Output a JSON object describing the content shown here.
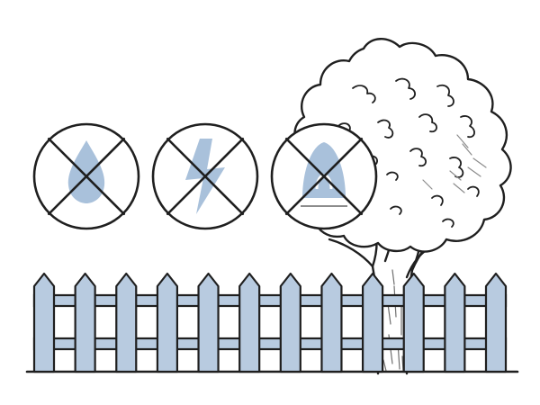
{
  "colors": {
    "background": "#ffffff",
    "ink": "#1f1f1f",
    "fence_fill": "#b8cbe0",
    "icon_fill": "#a9c1db",
    "tree_shadow": "#8c8c8c",
    "trunk_hatch": "#6f6f6f"
  },
  "prohibition_icons": [
    {
      "icon": "water-drop-icon",
      "crossed_out": true
    },
    {
      "icon": "lightning-bolt-icon",
      "crossed_out": true
    },
    {
      "icon": "iron-icon",
      "crossed_out": true
    }
  ],
  "fence": {
    "picket_count": 12
  },
  "tree": {
    "icon": "tree-icon"
  }
}
